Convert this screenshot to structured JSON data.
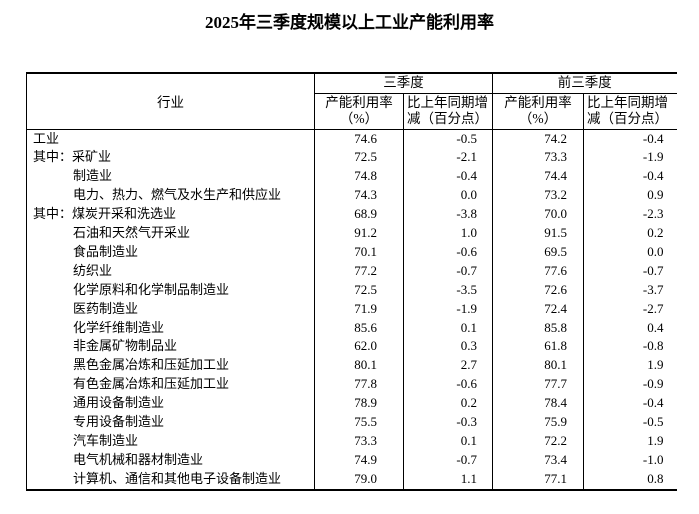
{
  "title": "2025年三季度规模以上工业产能利用率",
  "table": {
    "industry_header": "行业",
    "groups": [
      {
        "label": "三季度"
      },
      {
        "label": "前三季度"
      }
    ],
    "sub_headers": {
      "utilization": "产能利用率（%）",
      "change": "比上年同期增减（百分点）"
    },
    "rows": [
      {
        "prefix": "",
        "indent": false,
        "name": "工业",
        "values": [
          "74.6",
          "-0.5",
          "74.2",
          "-0.4"
        ]
      },
      {
        "prefix": "其中：",
        "indent": false,
        "name": "采矿业",
        "values": [
          "72.5",
          "-2.1",
          "73.3",
          "-1.9"
        ]
      },
      {
        "prefix": "",
        "indent": true,
        "name": "制造业",
        "values": [
          "74.8",
          "-0.4",
          "74.4",
          "-0.4"
        ]
      },
      {
        "prefix": "",
        "indent": true,
        "name": "电力、热力、燃气及水生产和供应业",
        "values": [
          "74.3",
          "0.0",
          "73.2",
          "0.9"
        ]
      },
      {
        "prefix": "其中：",
        "indent": false,
        "name": "煤炭开采和洗选业",
        "values": [
          "68.9",
          "-3.8",
          "70.0",
          "-2.3"
        ]
      },
      {
        "prefix": "",
        "indent": true,
        "name": "石油和天然气开采业",
        "values": [
          "91.2",
          "1.0",
          "91.5",
          "0.2"
        ]
      },
      {
        "prefix": "",
        "indent": true,
        "name": "食品制造业",
        "values": [
          "70.1",
          "-0.6",
          "69.5",
          "0.0"
        ]
      },
      {
        "prefix": "",
        "indent": true,
        "name": "纺织业",
        "values": [
          "77.2",
          "-0.7",
          "77.6",
          "-0.7"
        ]
      },
      {
        "prefix": "",
        "indent": true,
        "name": "化学原料和化学制品制造业",
        "values": [
          "72.5",
          "-3.5",
          "72.6",
          "-3.7"
        ]
      },
      {
        "prefix": "",
        "indent": true,
        "name": "医药制造业",
        "values": [
          "71.9",
          "-1.9",
          "72.4",
          "-2.7"
        ]
      },
      {
        "prefix": "",
        "indent": true,
        "name": "化学纤维制造业",
        "values": [
          "85.6",
          "0.1",
          "85.8",
          "0.4"
        ]
      },
      {
        "prefix": "",
        "indent": true,
        "name": "非金属矿物制品业",
        "values": [
          "62.0",
          "0.3",
          "61.8",
          "-0.8"
        ]
      },
      {
        "prefix": "",
        "indent": true,
        "name": "黑色金属冶炼和压延加工业",
        "values": [
          "80.1",
          "2.7",
          "80.1",
          "1.9"
        ]
      },
      {
        "prefix": "",
        "indent": true,
        "name": "有色金属冶炼和压延加工业",
        "values": [
          "77.8",
          "-0.6",
          "77.7",
          "-0.9"
        ]
      },
      {
        "prefix": "",
        "indent": true,
        "name": "通用设备制造业",
        "values": [
          "78.9",
          "0.2",
          "78.4",
          "-0.4"
        ]
      },
      {
        "prefix": "",
        "indent": true,
        "name": "专用设备制造业",
        "values": [
          "75.5",
          "-0.3",
          "75.9",
          "-0.5"
        ]
      },
      {
        "prefix": "",
        "indent": true,
        "name": "汽车制造业",
        "values": [
          "73.3",
          "0.1",
          "72.2",
          "1.9"
        ]
      },
      {
        "prefix": "",
        "indent": true,
        "name": "电气机械和器材制造业",
        "values": [
          "74.9",
          "-0.7",
          "73.4",
          "-1.0"
        ]
      },
      {
        "prefix": "",
        "indent": true,
        "name": "计算机、通信和其他电子设备制造业",
        "values": [
          "79.0",
          "1.1",
          "77.1",
          "0.8"
        ]
      }
    ]
  }
}
